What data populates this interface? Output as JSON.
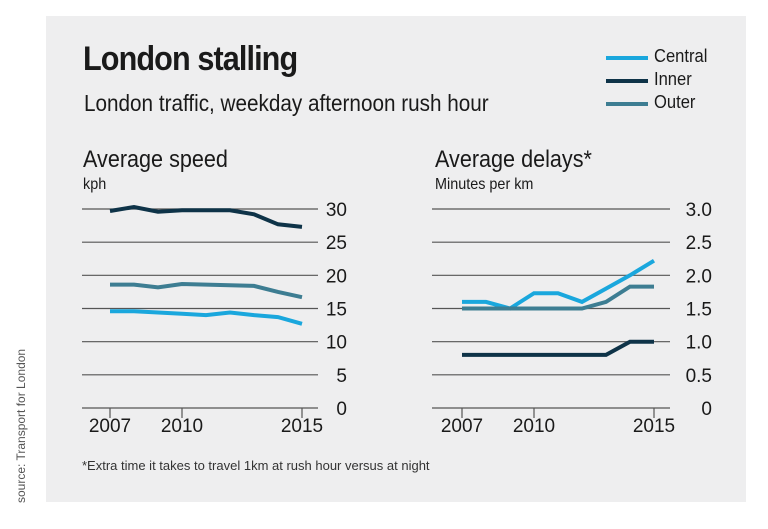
{
  "header": {
    "title": "London stalling",
    "subtitle": "London traffic, weekday afternoon rush hour"
  },
  "legend": [
    {
      "label": "Central",
      "color": "#1aa7dd"
    },
    {
      "label": "Inner",
      "color": "#0e3348"
    },
    {
      "label": "Outer",
      "color": "#3d7d92"
    }
  ],
  "footnote": "*Extra time it takes to travel 1km at rush hour versus at night",
  "source": "source: Transport for London",
  "chart_data": [
    {
      "type": "line",
      "title": "Average speed",
      "ylabel": "kph",
      "ylim": [
        0,
        30
      ],
      "yticks": [
        "0",
        "5",
        "10",
        "15",
        "20",
        "25",
        "30"
      ],
      "ytick_values": [
        0,
        5,
        10,
        15,
        20,
        25,
        30
      ],
      "xlim": [
        2007,
        2015
      ],
      "xticks": [
        "2007",
        "2010",
        "2015"
      ],
      "xtick_values": [
        2007,
        2010,
        2015
      ],
      "grid": true,
      "x": [
        2007,
        2008,
        2009,
        2010,
        2011,
        2012,
        2013,
        2014,
        2015
      ],
      "series": [
        {
          "name": "Central",
          "color": "#1aa7dd",
          "values": [
            14.6,
            14.6,
            14.4,
            14.2,
            14.0,
            14.4,
            14.0,
            13.7,
            12.7
          ]
        },
        {
          "name": "Inner",
          "color": "#0e3348",
          "values": [
            29.7,
            30.3,
            29.6,
            29.8,
            29.8,
            29.8,
            29.2,
            27.7,
            27.3
          ]
        },
        {
          "name": "Outer",
          "color": "#3d7d92",
          "values": [
            18.6,
            18.6,
            18.2,
            18.7,
            18.6,
            18.5,
            18.4,
            17.5,
            16.7
          ]
        }
      ]
    },
    {
      "type": "line",
      "title": "Average delays*",
      "ylabel": "Minutes per km",
      "ylim": [
        0,
        3.0
      ],
      "yticks": [
        "0",
        "0.5",
        "1.0",
        "1.5",
        "2.0",
        "2.5",
        "3.0"
      ],
      "ytick_values": [
        0,
        0.5,
        1.0,
        1.5,
        2.0,
        2.5,
        3.0
      ],
      "xlim": [
        2007,
        2015
      ],
      "xticks": [
        "2007",
        "2010",
        "2015"
      ],
      "xtick_values": [
        2007,
        2010,
        2015
      ],
      "grid": true,
      "x": [
        2007,
        2008,
        2009,
        2010,
        2011,
        2012,
        2013,
        2014,
        2015
      ],
      "series": [
        {
          "name": "Central",
          "color": "#1aa7dd",
          "values": [
            1.6,
            1.6,
            1.5,
            1.73,
            1.73,
            1.6,
            1.8,
            2.0,
            2.22
          ]
        },
        {
          "name": "Inner",
          "color": "#0e3348",
          "values": [
            0.8,
            0.8,
            0.8,
            0.8,
            0.8,
            0.8,
            0.8,
            1.0,
            1.0
          ]
        },
        {
          "name": "Outer",
          "color": "#3d7d92",
          "values": [
            1.5,
            1.5,
            1.5,
            1.5,
            1.5,
            1.5,
            1.6,
            1.83,
            1.83
          ]
        }
      ]
    }
  ]
}
